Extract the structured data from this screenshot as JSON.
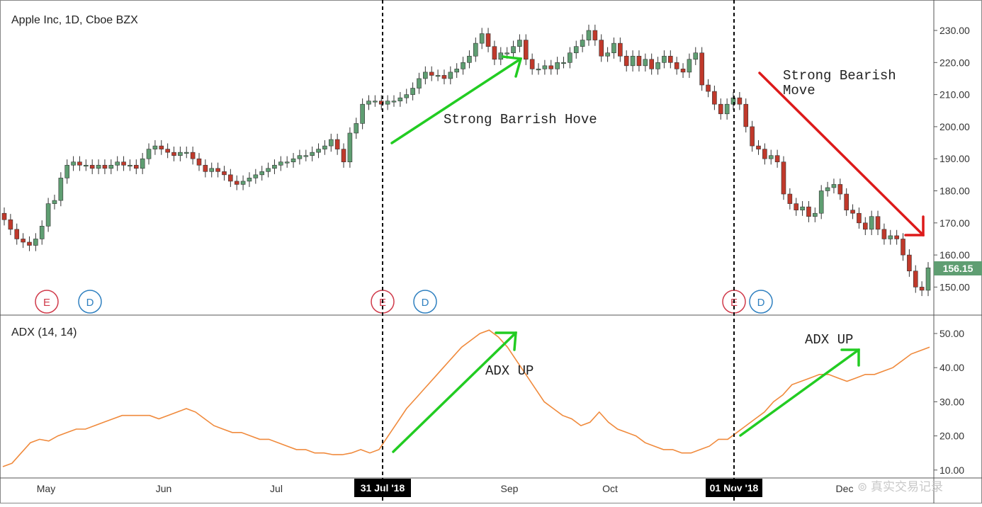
{
  "chart_data": [
    {
      "type": "candlestick",
      "title": "Apple Inc, 1D, Cboe BZX",
      "x_labels": [
        "May",
        "Jun",
        "Jul",
        "31 Jul '18",
        "Sep",
        "Oct",
        "01 Nov '18",
        "Dec"
      ],
      "highlighted_x_labels": [
        "31 Jul '18",
        "01 Nov '18"
      ],
      "y_ticks": [
        "230.00",
        "220.00",
        "210.00",
        "200.00",
        "190.00",
        "180.00",
        "170.00",
        "160.00",
        "150.00"
      ],
      "ylim": [
        140,
        235
      ],
      "last_price": "156.15",
      "last_price_color": "#5f9e72",
      "up_color": "#5f9e72",
      "down_color": "#c0392b",
      "closes": [
        171,
        168,
        165,
        164,
        163,
        165,
        169,
        176,
        177,
        184,
        188,
        189,
        188,
        188,
        187,
        188,
        187,
        188,
        189,
        188,
        188,
        187,
        190,
        193,
        194,
        193,
        192,
        191,
        192,
        192,
        190,
        188,
        186,
        187,
        186,
        185,
        183,
        182,
        183,
        184,
        185,
        186,
        187,
        188,
        189,
        189,
        190,
        191,
        191,
        192,
        193,
        194,
        196,
        193,
        189,
        198,
        201,
        207,
        208,
        208,
        207,
        208,
        208,
        209,
        210,
        212,
        215,
        217,
        216,
        216,
        215,
        217,
        218,
        220,
        222,
        226,
        229,
        225,
        221,
        223,
        223,
        225,
        227,
        221,
        218,
        218,
        219,
        218,
        220,
        220,
        223,
        225,
        227,
        230,
        227,
        222,
        223,
        226,
        222,
        219,
        222,
        219,
        221,
        218,
        220,
        222,
        220,
        218,
        217,
        221,
        223,
        213,
        211,
        207,
        204,
        207,
        209,
        207,
        200,
        194,
        193,
        190,
        191,
        189,
        179,
        176,
        174,
        175,
        172,
        173,
        180,
        181,
        182,
        179,
        174,
        173,
        170,
        168,
        172,
        168,
        165,
        166,
        165,
        160,
        155,
        150,
        149,
        156
      ],
      "markers": [
        {
          "label": "E",
          "color": "#d03a4a"
        },
        {
          "label": "D",
          "color": "#2f80c0"
        },
        {
          "label": "E",
          "color": "#d03a4a"
        },
        {
          "label": "D",
          "color": "#2f80c0"
        },
        {
          "label": "E",
          "color": "#d03a4a"
        },
        {
          "label": "D",
          "color": "#2f80c0"
        }
      ],
      "annotations": [
        "Strong Barrish Hove",
        "Strong Bearish Move"
      ]
    },
    {
      "type": "line",
      "title": "ADX (14, 14)",
      "y_ticks": [
        "50.00",
        "40.00",
        "30.00",
        "20.00",
        "10.00"
      ],
      "ylim": [
        8,
        52
      ],
      "series": [
        {
          "color": "#f08a3c",
          "values": [
            11,
            12,
            15,
            18,
            19,
            18.5,
            20,
            21,
            22,
            22,
            23,
            24,
            25,
            26,
            26,
            26,
            26,
            25,
            26,
            27,
            28,
            27,
            25,
            23,
            22,
            21,
            21,
            20,
            19,
            19,
            18,
            17,
            16,
            16,
            15,
            15,
            14.5,
            14.5,
            15,
            16,
            15,
            16,
            20,
            24,
            28,
            31,
            34,
            37,
            40,
            43,
            46,
            48,
            50,
            51,
            49,
            46,
            42,
            38,
            34,
            30,
            28,
            26,
            25,
            23,
            24,
            27,
            24,
            22,
            21,
            20,
            18,
            17,
            16,
            16,
            15,
            15,
            16,
            17,
            19,
            19,
            21,
            23,
            25,
            27,
            30,
            32,
            35,
            36,
            37,
            38,
            38,
            37,
            36,
            37,
            38,
            38,
            39,
            40,
            42,
            44,
            45,
            46
          ]
        }
      ],
      "annotations": [
        "ADX UP",
        "ADX UP"
      ]
    }
  ],
  "watermark": "真实交易记录",
  "colors": {
    "arrow_green": "#22cc22",
    "arrow_red": "#dd1a1a",
    "axis": "#555555",
    "divider": "#000000"
  }
}
